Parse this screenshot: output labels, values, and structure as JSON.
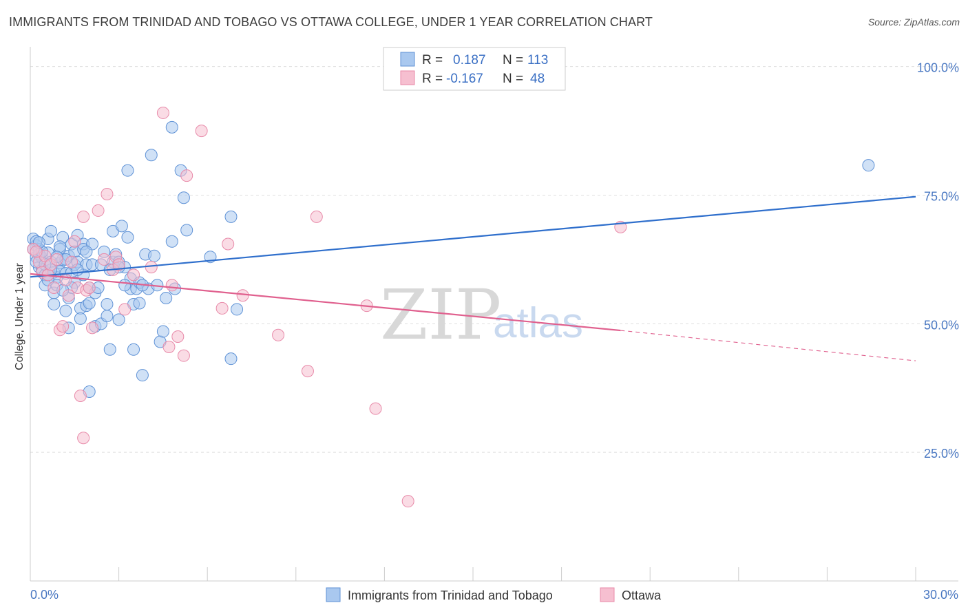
{
  "title": "IMMIGRANTS FROM TRINIDAD AND TOBAGO VS OTTAWA COLLEGE, UNDER 1 YEAR CORRELATION CHART",
  "source": "Source: ZipAtlas.com",
  "watermark": {
    "zip": "ZIP",
    "atlas": "atlas"
  },
  "legend": {
    "r_label": "R =",
    "n_label": "N =",
    "rows": [
      {
        "r": "0.187",
        "n": "113"
      },
      {
        "r": "-0.167",
        "n": "48"
      }
    ]
  },
  "colors": {
    "blue_fill": "#a9c8ef",
    "blue_stroke": "#5f92d6",
    "blue_line": "#2f6fcc",
    "pink_fill": "#f6bfd0",
    "pink_stroke": "#e88aa9",
    "pink_line": "#e0608e",
    "grid": "#dddddd",
    "tick_label": "#4a78c2"
  },
  "chart_data": {
    "type": "scatter",
    "xlabel": "",
    "ylabel": "College, Under 1 year",
    "xlim": [
      0,
      30
    ],
    "ylim": [
      0,
      102.5
    ],
    "x_tick_labels": [
      {
        "value": 0,
        "label": "0.0%"
      },
      {
        "value": 30,
        "label": "30.0%"
      }
    ],
    "y_tick_labels": [
      {
        "value": 25,
        "label": "25.0%"
      },
      {
        "value": 50,
        "label": "50.0%"
      },
      {
        "value": 75,
        "label": "75.0%"
      },
      {
        "value": 100,
        "label": "100.0%"
      }
    ],
    "series": [
      {
        "name": "Immigrants from Trinidad and Tobago",
        "color": "blue",
        "r": 0.187,
        "n": 113,
        "trend": {
          "x0": 0,
          "y0": 59.1,
          "x1": 30,
          "y1": 74.7
        },
        "points": [
          [
            0.1,
            66.5
          ],
          [
            0.2,
            65.2
          ],
          [
            0.2,
            63.0
          ],
          [
            0.3,
            64.5
          ],
          [
            0.3,
            61.0
          ],
          [
            0.4,
            62.8
          ],
          [
            0.4,
            60.5
          ],
          [
            0.5,
            57.5
          ],
          [
            0.5,
            59.5
          ],
          [
            0.6,
            66.5
          ],
          [
            0.6,
            63.8
          ],
          [
            0.7,
            62.0
          ],
          [
            0.7,
            68.0
          ],
          [
            0.8,
            60.0
          ],
          [
            0.8,
            56.0
          ],
          [
            0.8,
            53.8
          ],
          [
            0.9,
            59.0
          ],
          [
            0.9,
            57.5
          ],
          [
            1.0,
            61.8
          ],
          [
            1.0,
            60.2
          ],
          [
            1.0,
            64.5
          ],
          [
            1.1,
            66.8
          ],
          [
            1.1,
            62.5
          ],
          [
            1.2,
            52.5
          ],
          [
            1.2,
            59.8
          ],
          [
            1.3,
            63.2
          ],
          [
            1.3,
            55.0
          ],
          [
            1.3,
            49.2
          ],
          [
            1.4,
            65.5
          ],
          [
            1.4,
            60.0
          ],
          [
            1.5,
            64.0
          ],
          [
            1.5,
            61.5
          ],
          [
            1.6,
            67.2
          ],
          [
            1.6,
            62.0
          ],
          [
            1.7,
            53.0
          ],
          [
            1.7,
            51.0
          ],
          [
            1.8,
            65.5
          ],
          [
            1.8,
            59.5
          ],
          [
            1.8,
            64.5
          ],
          [
            1.9,
            61.5
          ],
          [
            1.9,
            53.5
          ],
          [
            2.0,
            57.0
          ],
          [
            2.0,
            54.0
          ],
          [
            2.0,
            36.8
          ],
          [
            2.1,
            65.5
          ],
          [
            2.1,
            61.5
          ],
          [
            2.2,
            56.0
          ],
          [
            2.2,
            49.5
          ],
          [
            2.3,
            57.0
          ],
          [
            2.4,
            50.0
          ],
          [
            2.5,
            64.0
          ],
          [
            2.6,
            51.5
          ],
          [
            2.6,
            53.8
          ],
          [
            2.7,
            45.0
          ],
          [
            2.8,
            62.0
          ],
          [
            2.8,
            68.0
          ],
          [
            2.9,
            63.5
          ],
          [
            3.0,
            50.8
          ],
          [
            3.0,
            62.0
          ],
          [
            3.1,
            69.0
          ],
          [
            3.2,
            61.0
          ],
          [
            3.3,
            79.8
          ],
          [
            3.3,
            66.8
          ],
          [
            3.4,
            56.8
          ],
          [
            3.4,
            58.8
          ],
          [
            3.5,
            45.0
          ],
          [
            3.5,
            53.8
          ],
          [
            3.6,
            56.8
          ],
          [
            3.7,
            54.0
          ],
          [
            3.7,
            58.0
          ],
          [
            3.8,
            40.0
          ],
          [
            3.9,
            63.5
          ],
          [
            4.0,
            56.8
          ],
          [
            3.8,
            57.5
          ],
          [
            4.1,
            82.8
          ],
          [
            4.2,
            63.2
          ],
          [
            4.3,
            57.5
          ],
          [
            4.4,
            46.5
          ],
          [
            4.5,
            48.5
          ],
          [
            4.6,
            55.0
          ],
          [
            4.8,
            66.0
          ],
          [
            4.9,
            56.8
          ],
          [
            4.8,
            88.2
          ],
          [
            5.1,
            79.8
          ],
          [
            5.2,
            74.5
          ],
          [
            5.3,
            68.2
          ],
          [
            6.1,
            63.0
          ],
          [
            6.8,
            70.8
          ],
          [
            6.8,
            43.2
          ],
          [
            7.0,
            52.8
          ],
          [
            28.4,
            80.8
          ],
          [
            0.2,
            66.0
          ],
          [
            0.3,
            63.5
          ],
          [
            0.6,
            58.5
          ],
          [
            1.0,
            65.0
          ],
          [
            1.5,
            58.0
          ],
          [
            2.4,
            61.5
          ],
          [
            3.0,
            61.0
          ],
          [
            3.2,
            57.5
          ],
          [
            0.4,
            64.0
          ],
          [
            0.7,
            60.5
          ],
          [
            1.2,
            62.5
          ],
          [
            1.9,
            64.0
          ],
          [
            2.7,
            60.5
          ],
          [
            0.2,
            62.0
          ],
          [
            0.5,
            61.5
          ],
          [
            0.9,
            63.0
          ],
          [
            1.4,
            57.0
          ],
          [
            0.1,
            64.5
          ],
          [
            0.3,
            65.8
          ],
          [
            0.6,
            59.5
          ],
          [
            1.1,
            56.5
          ],
          [
            1.6,
            60.5
          ]
        ]
      },
      {
        "name": "Ottawa",
        "color": "pink",
        "r": -0.167,
        "n": 48,
        "trend": {
          "x0": 0,
          "y0": 59.7,
          "x1": 20,
          "y1": 48.7,
          "dash_x1": 30,
          "dash_y1": 42.8
        },
        "points": [
          [
            0.1,
            64.5
          ],
          [
            0.3,
            62.0
          ],
          [
            0.4,
            60.0
          ],
          [
            0.5,
            63.2
          ],
          [
            0.6,
            59.5
          ],
          [
            0.7,
            61.5
          ],
          [
            0.8,
            57.0
          ],
          [
            1.0,
            48.8
          ],
          [
            1.1,
            49.5
          ],
          [
            1.2,
            58.5
          ],
          [
            1.3,
            55.5
          ],
          [
            1.4,
            62.0
          ],
          [
            1.5,
            66.0
          ],
          [
            1.6,
            57.0
          ],
          [
            1.7,
            36.0
          ],
          [
            1.8,
            27.8
          ],
          [
            1.8,
            70.8
          ],
          [
            1.9,
            56.5
          ],
          [
            2.0,
            57.0
          ],
          [
            2.1,
            49.2
          ],
          [
            2.3,
            72.0
          ],
          [
            2.6,
            75.2
          ],
          [
            2.8,
            60.5
          ],
          [
            2.9,
            63.0
          ],
          [
            3.0,
            61.5
          ],
          [
            3.2,
            52.8
          ],
          [
            3.5,
            59.5
          ],
          [
            4.1,
            61.0
          ],
          [
            4.5,
            91.0
          ],
          [
            4.7,
            45.5
          ],
          [
            4.8,
            57.5
          ],
          [
            5.0,
            47.5
          ],
          [
            5.2,
            43.8
          ],
          [
            5.3,
            78.8
          ],
          [
            5.8,
            87.5
          ],
          [
            6.5,
            53.0
          ],
          [
            6.7,
            65.5
          ],
          [
            7.2,
            55.5
          ],
          [
            8.4,
            47.8
          ],
          [
            9.4,
            40.8
          ],
          [
            9.7,
            70.8
          ],
          [
            11.4,
            53.5
          ],
          [
            11.7,
            33.5
          ],
          [
            12.8,
            15.5
          ],
          [
            20.0,
            68.8
          ],
          [
            0.2,
            64.0
          ],
          [
            0.9,
            62.5
          ],
          [
            2.5,
            62.5
          ]
        ]
      }
    ]
  },
  "bottom_legend": [
    {
      "label": "Immigrants from Trinidad and Tobago"
    },
    {
      "label": "Ottawa"
    }
  ]
}
